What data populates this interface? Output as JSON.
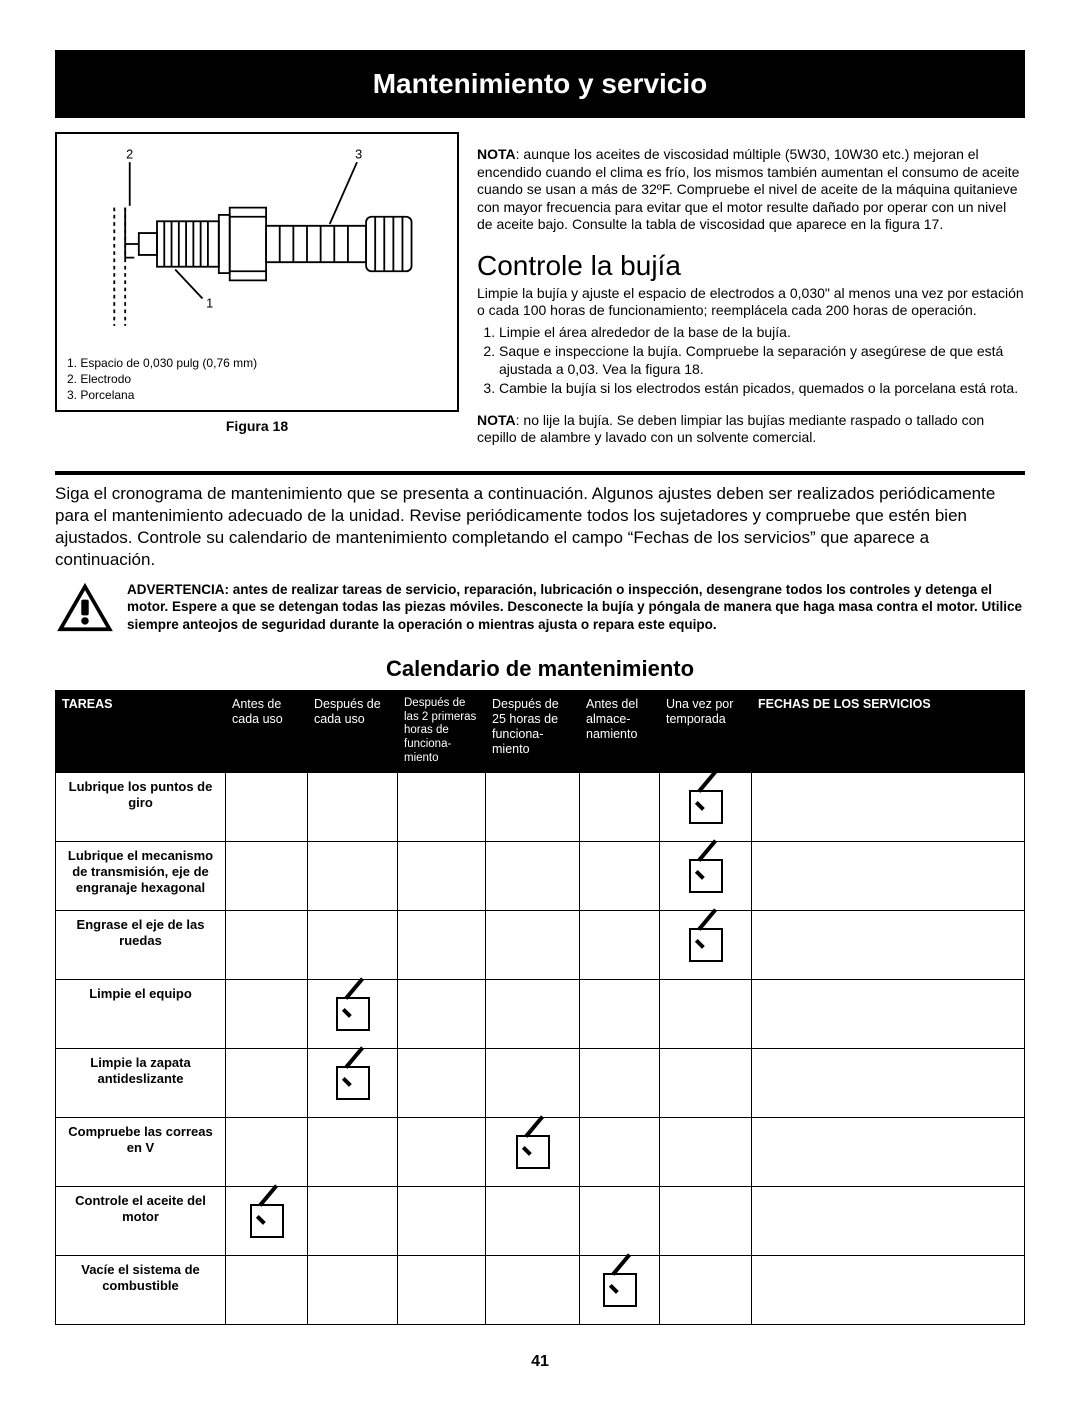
{
  "title": "Mantenimiento y servicio",
  "figure": {
    "labels": {
      "l1": "1",
      "l2": "2",
      "l3": "3"
    },
    "legend": {
      "i1": "1.   Espacio de 0,030 pulg (0,76 mm)",
      "i2": "2.   Electrodo",
      "i3": "3.   Porcelana"
    },
    "caption": "Figura 18"
  },
  "right": {
    "nota1_label": "NOTA",
    "nota1_text": ": aunque los aceites de viscosidad múltiple (5W30, 10W30 etc.) mejoran el encendido cuando el clima es frío, los mismos también aumentan el consumo de aceite cuando se usan a más de 32ºF. Compruebe el nivel de aceite de la máquina quitanieve con mayor frecuencia para evitar que el motor resulte dañado por operar con un nivel de aceite bajo. Consulte la tabla de viscosidad que aparece en la figura 17.",
    "h2": "Controle la bujía",
    "intro": "Limpie la bujía y ajuste el espacio de electrodos a 0,030\" al menos una vez por estación o cada 100 horas de funcionamiento; reemplácela cada 200 horas de operación.",
    "li1": "Limpie el área alrededor de la base de la bujía.",
    "li2": "Saque e inspeccione la bujía. Compruebe la separación y asegúrese de que está ajustada a 0,03. Vea la figura 18.",
    "li3": "Cambie la bujía si los electrodos están picados, quemados o la porcelana está rota.",
    "nota2_label": "NOTA",
    "nota2_text": ": no lije la bujía. Se deben limpiar las bujías mediante raspado o tallado con cepillo de alambre y lavado con un solvente comercial."
  },
  "body_para": "Siga el cronograma de mantenimiento que se presenta a continuación. Algunos ajustes deben ser realizados periódicamente para el mantenimiento adecuado de la unidad. Revise periódicamente todos los sujetadores y compruebe que estén bien ajustados. Controle su calendario de mantenimiento completando el campo “Fechas de los servicios” que aparece a continuación.",
  "warning": "ADVERTENCIA: antes de realizar tareas de servicio, reparación, lubricación o inspección, desengrane todos los controles y detenga el motor. Espere a que se detengan todas las piezas móviles. Desconecte la bujía y póngala de manera que haga masa contra el motor. Utilice siempre anteojos de seguridad durante la operación o mientras ajusta o repara este equipo.",
  "cal_heading": "Calendario de mantenimiento",
  "table": {
    "headers": {
      "c0": "TAREAS",
      "c1": "Antes de cada uso",
      "c2": "Después de cada uso",
      "c3": "Después de las 2 primeras horas de funciona-miento",
      "c4": "Después de 25 horas de funciona-miento",
      "c5": "Antes del almace-namiento",
      "c6": "Una vez por temporada",
      "c7": "FECHAS DE LOS SERVICIOS"
    },
    "rows": [
      {
        "task": "Lubrique los puntos de giro",
        "checks": [
          0,
          0,
          0,
          0,
          0,
          1,
          0
        ]
      },
      {
        "task": "Lubrique el mecanismo de transmisión, eje de engranaje hexagonal",
        "checks": [
          0,
          0,
          0,
          0,
          0,
          1,
          0
        ]
      },
      {
        "task": "Engrase el eje de las ruedas",
        "checks": [
          0,
          0,
          0,
          0,
          0,
          1,
          0
        ]
      },
      {
        "task": "Limpie el equipo",
        "checks": [
          0,
          1,
          0,
          0,
          0,
          0,
          0
        ]
      },
      {
        "task": "Limpie la zapata antideslizante",
        "checks": [
          0,
          1,
          0,
          0,
          0,
          0,
          0
        ]
      },
      {
        "task": "Compruebe las correas en V",
        "checks": [
          0,
          0,
          0,
          1,
          0,
          0,
          0
        ]
      },
      {
        "task": "Controle el aceite del motor",
        "checks": [
          1,
          0,
          0,
          0,
          0,
          0,
          0
        ]
      },
      {
        "task": "Vacíe el sistema de combustible",
        "checks": [
          0,
          0,
          0,
          0,
          1,
          0,
          0
        ]
      }
    ]
  },
  "pagenum": "41"
}
